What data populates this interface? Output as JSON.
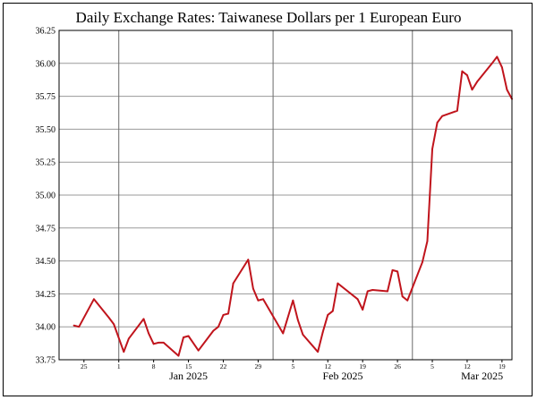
{
  "chart_data": {
    "type": "line",
    "title": "Daily Exchange Rates: Taiwanese Dollars per 1 European Euro",
    "xlabel": "",
    "ylabel": "",
    "ylim": [
      33.75,
      36.25
    ],
    "y_ticks": [
      "33.75",
      "34.00",
      "34.25",
      "34.50",
      "34.75",
      "35.00",
      "35.25",
      "35.50",
      "35.75",
      "36.00",
      "36.25"
    ],
    "x_range": [
      "2024-12-20",
      "2025-03-21"
    ],
    "minor_ticks": [
      {
        "date": "2024-12-25",
        "label": "25"
      },
      {
        "date": "2025-01-01",
        "label": "1"
      },
      {
        "date": "2025-01-08",
        "label": "8"
      },
      {
        "date": "2025-01-15",
        "label": "15"
      },
      {
        "date": "2025-01-22",
        "label": "22"
      },
      {
        "date": "2025-01-29",
        "label": "29"
      },
      {
        "date": "2025-02-05",
        "label": "5"
      },
      {
        "date": "2025-02-12",
        "label": "12"
      },
      {
        "date": "2025-02-19",
        "label": "19"
      },
      {
        "date": "2025-02-26",
        "label": "26"
      },
      {
        "date": "2025-03-05",
        "label": "5"
      },
      {
        "date": "2025-03-12",
        "label": "12"
      },
      {
        "date": "2025-03-19",
        "label": "19"
      }
    ],
    "month_ticks": [
      {
        "date": "2025-01-01",
        "label": "Jan 2025"
      },
      {
        "date": "2025-02-01",
        "label": "Feb 2025"
      },
      {
        "date": "2025-03-01",
        "label": "Mar 2025"
      }
    ],
    "grid": true,
    "line_color": "#c0141c",
    "series": [
      {
        "name": "",
        "points": [
          [
            "2024-12-23",
            34.01
          ],
          [
            "2024-12-24",
            34.0
          ],
          [
            "2024-12-27",
            34.21
          ],
          [
            "2024-12-30",
            34.07
          ],
          [
            "2024-12-31",
            34.02
          ],
          [
            "2025-01-02",
            33.81
          ],
          [
            "2025-01-03",
            33.91
          ],
          [
            "2025-01-06",
            34.06
          ],
          [
            "2025-01-07",
            33.95
          ],
          [
            "2025-01-08",
            33.87
          ],
          [
            "2025-01-09",
            33.88
          ],
          [
            "2025-01-10",
            33.88
          ],
          [
            "2025-01-13",
            33.78
          ],
          [
            "2025-01-14",
            33.92
          ],
          [
            "2025-01-15",
            33.93
          ],
          [
            "2025-01-17",
            33.82
          ],
          [
            "2025-01-20",
            33.97
          ],
          [
            "2025-01-21",
            34.0
          ],
          [
            "2025-01-22",
            34.09
          ],
          [
            "2025-01-23",
            34.1
          ],
          [
            "2025-01-24",
            34.33
          ],
          [
            "2025-01-27",
            34.51
          ],
          [
            "2025-01-28",
            34.29
          ],
          [
            "2025-01-29",
            34.2
          ],
          [
            "2025-01-30",
            34.21
          ],
          [
            "2025-02-03",
            33.95
          ],
          [
            "2025-02-05",
            34.2
          ],
          [
            "2025-02-06",
            34.05
          ],
          [
            "2025-02-07",
            33.94
          ],
          [
            "2025-02-10",
            33.81
          ],
          [
            "2025-02-11",
            33.96
          ],
          [
            "2025-02-12",
            34.09
          ],
          [
            "2025-02-13",
            34.12
          ],
          [
            "2025-02-14",
            34.33
          ],
          [
            "2025-02-18",
            34.21
          ],
          [
            "2025-02-19",
            34.13
          ],
          [
            "2025-02-20",
            34.27
          ],
          [
            "2025-02-21",
            34.28
          ],
          [
            "2025-02-24",
            34.27
          ],
          [
            "2025-02-25",
            34.43
          ],
          [
            "2025-02-26",
            34.42
          ],
          [
            "2025-02-27",
            34.23
          ],
          [
            "2025-02-28",
            34.2
          ],
          [
            "2025-03-03",
            34.49
          ],
          [
            "2025-03-04",
            34.65
          ],
          [
            "2025-03-05",
            35.35
          ],
          [
            "2025-03-06",
            35.55
          ],
          [
            "2025-03-07",
            35.6
          ],
          [
            "2025-03-10",
            35.64
          ],
          [
            "2025-03-11",
            35.94
          ],
          [
            "2025-03-12",
            35.91
          ],
          [
            "2025-03-13",
            35.8
          ],
          [
            "2025-03-14",
            35.86
          ],
          [
            "2025-03-17",
            36.0
          ],
          [
            "2025-03-18",
            36.05
          ],
          [
            "2025-03-19",
            35.97
          ],
          [
            "2025-03-20",
            35.8
          ],
          [
            "2025-03-21",
            35.73
          ]
        ]
      }
    ]
  }
}
